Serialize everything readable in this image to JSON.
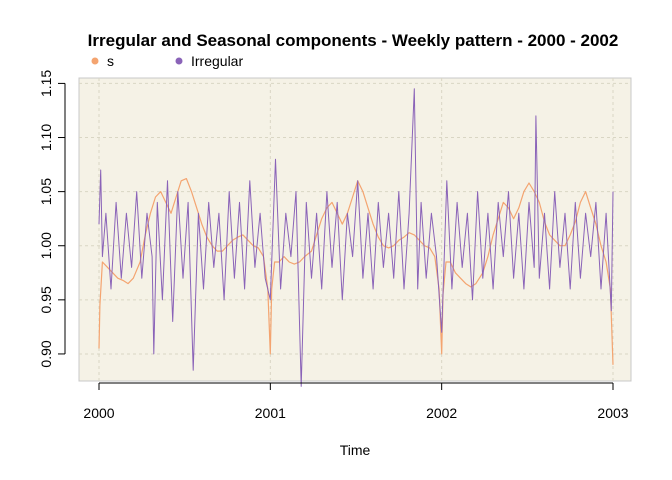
{
  "chart_data": {
    "type": "line",
    "title": "Irregular and Seasonal components - Weekly pattern - 2000 - 2002",
    "xlabel": "Time",
    "ylabel": "",
    "xlim": [
      2000,
      2003
    ],
    "ylim": [
      0.875,
      1.155
    ],
    "x_ticks": [
      2000,
      2001,
      2002,
      2003
    ],
    "x_tick_labels": [
      "2000",
      "2001",
      "2002",
      "2003"
    ],
    "y_ticks": [
      0.9,
      0.95,
      1.0,
      1.05,
      1.1,
      1.15
    ],
    "y_tick_labels": [
      "0.90",
      "0.95",
      "1.00",
      "1.05",
      "1.10",
      "1.15"
    ],
    "grid": true,
    "legend": {
      "position": "top-left",
      "orientation": "horizontal"
    },
    "series": [
      {
        "name": "s",
        "color": "#f4a470",
        "x": [
          2000.0,
          2000.005,
          2000.02,
          2000.05,
          2000.08,
          2000.11,
          2000.14,
          2000.17,
          2000.2,
          2000.24,
          2000.27,
          2000.3,
          2000.33,
          2000.36,
          2000.39,
          2000.42,
          2000.45,
          2000.48,
          2000.51,
          2000.54,
          2000.57,
          2000.6,
          2000.63,
          2000.66,
          2000.69,
          2000.72,
          2000.75,
          2000.78,
          2000.81,
          2000.84,
          2000.87,
          2000.9,
          2000.93,
          2000.96,
          2000.985,
          2001.0,
          2001.008,
          2001.025,
          2001.05,
          2001.08,
          2001.11,
          2001.14,
          2001.17,
          2001.2,
          2001.24,
          2001.27,
          2001.3,
          2001.33,
          2001.36,
          2001.39,
          2001.42,
          2001.45,
          2001.48,
          2001.51,
          2001.54,
          2001.57,
          2001.6,
          2001.63,
          2001.66,
          2001.69,
          2001.72,
          2001.75,
          2001.78,
          2001.81,
          2001.84,
          2001.87,
          2001.9,
          2001.93,
          2001.96,
          2001.985,
          2002.0,
          2002.008,
          2002.025,
          2002.05,
          2002.08,
          2002.11,
          2002.14,
          2002.17,
          2002.2,
          2002.24,
          2002.27,
          2002.3,
          2002.33,
          2002.36,
          2002.39,
          2002.42,
          2002.45,
          2002.48,
          2002.51,
          2002.54,
          2002.57,
          2002.6,
          2002.63,
          2002.66,
          2002.69,
          2002.72,
          2002.75,
          2002.78,
          2002.81,
          2002.84,
          2002.87,
          2002.9,
          2002.93,
          2002.96,
          2002.985,
          2003.0
        ],
        "values": [
          0.905,
          0.945,
          0.985,
          0.98,
          0.975,
          0.97,
          0.968,
          0.965,
          0.97,
          0.985,
          1.01,
          1.03,
          1.045,
          1.05,
          1.04,
          1.03,
          1.045,
          1.06,
          1.062,
          1.05,
          1.035,
          1.02,
          1.008,
          1.0,
          0.995,
          0.995,
          1.0,
          1.005,
          1.008,
          1.01,
          1.005,
          1.0,
          0.998,
          0.99,
          0.96,
          0.9,
          0.96,
          0.985,
          0.985,
          0.99,
          0.985,
          0.983,
          0.985,
          0.99,
          0.995,
          1.01,
          1.025,
          1.035,
          1.04,
          1.03,
          1.02,
          1.03,
          1.045,
          1.06,
          1.05,
          1.035,
          1.02,
          1.008,
          1.0,
          0.998,
          1.0,
          1.005,
          1.008,
          1.012,
          1.01,
          1.005,
          1.0,
          0.998,
          0.99,
          0.96,
          0.9,
          0.955,
          0.985,
          0.985,
          0.975,
          0.97,
          0.965,
          0.962,
          0.965,
          0.975,
          0.99,
          1.01,
          1.025,
          1.04,
          1.035,
          1.025,
          1.035,
          1.05,
          1.058,
          1.05,
          1.04,
          1.022,
          1.01,
          1.005,
          1.0,
          1.0,
          1.01,
          1.022,
          1.04,
          1.05,
          1.035,
          1.02,
          1.0,
          0.985,
          0.96,
          0.89
        ]
      },
      {
        "name": "Irregular",
        "color": "#8a63b8",
        "x": [
          2000.0,
          2000.01,
          2000.02,
          2000.04,
          2000.07,
          2000.1,
          2000.13,
          2000.16,
          2000.19,
          2000.22,
          2000.25,
          2000.28,
          2000.31,
          2000.32,
          2000.34,
          2000.37,
          2000.4,
          2000.43,
          2000.46,
          2000.49,
          2000.52,
          2000.55,
          2000.58,
          2000.61,
          2000.64,
          2000.67,
          2000.7,
          2000.73,
          2000.76,
          2000.79,
          2000.82,
          2000.85,
          2000.88,
          2000.91,
          2000.94,
          2000.97,
          2001.0,
          2001.03,
          2001.06,
          2001.09,
          2001.12,
          2001.15,
          2001.18,
          2001.21,
          2001.24,
          2001.27,
          2001.3,
          2001.33,
          2001.36,
          2001.39,
          2001.42,
          2001.45,
          2001.48,
          2001.51,
          2001.54,
          2001.57,
          2001.6,
          2001.63,
          2001.66,
          2001.69,
          2001.72,
          2001.75,
          2001.78,
          2001.81,
          2001.84,
          2001.86,
          2001.88,
          2001.91,
          2001.94,
          2001.97,
          2002.0,
          2002.03,
          2002.06,
          2002.09,
          2002.12,
          2002.15,
          2002.18,
          2002.21,
          2002.24,
          2002.27,
          2002.3,
          2002.33,
          2002.36,
          2002.39,
          2002.42,
          2002.45,
          2002.48,
          2002.51,
          2002.54,
          2002.55,
          2002.57,
          2002.6,
          2002.63,
          2002.66,
          2002.69,
          2002.72,
          2002.75,
          2002.78,
          2002.81,
          2002.84,
          2002.87,
          2002.9,
          2002.93,
          2002.96,
          2002.99,
          2003.0
        ],
        "values": [
          1.02,
          1.07,
          0.99,
          1.03,
          0.96,
          1.04,
          0.97,
          1.03,
          0.98,
          1.05,
          0.97,
          1.03,
          0.99,
          0.9,
          1.04,
          0.95,
          1.06,
          0.93,
          1.05,
          0.97,
          1.04,
          0.885,
          1.03,
          0.96,
          1.04,
          0.98,
          1.03,
          0.95,
          1.05,
          0.97,
          1.04,
          0.96,
          1.06,
          0.98,
          1.03,
          0.97,
          0.95,
          1.08,
          0.96,
          1.03,
          0.99,
          1.05,
          0.87,
          1.04,
          0.97,
          1.03,
          0.96,
          1.05,
          0.98,
          1.04,
          0.95,
          1.03,
          0.99,
          1.06,
          0.97,
          1.03,
          0.96,
          1.04,
          0.98,
          1.03,
          0.97,
          1.05,
          0.96,
          1.03,
          1.145,
          0.96,
          1.04,
          0.97,
          1.03,
          0.99,
          0.92,
          1.06,
          0.96,
          1.04,
          0.98,
          1.03,
          0.95,
          1.05,
          0.97,
          1.03,
          0.96,
          1.04,
          0.99,
          1.05,
          0.97,
          1.03,
          0.96,
          1.04,
          0.98,
          1.12,
          0.97,
          1.03,
          0.96,
          1.05,
          0.98,
          1.03,
          0.96,
          1.04,
          0.97,
          1.03,
          0.99,
          1.04,
          0.96,
          1.03,
          0.94,
          1.05
        ]
      }
    ]
  }
}
